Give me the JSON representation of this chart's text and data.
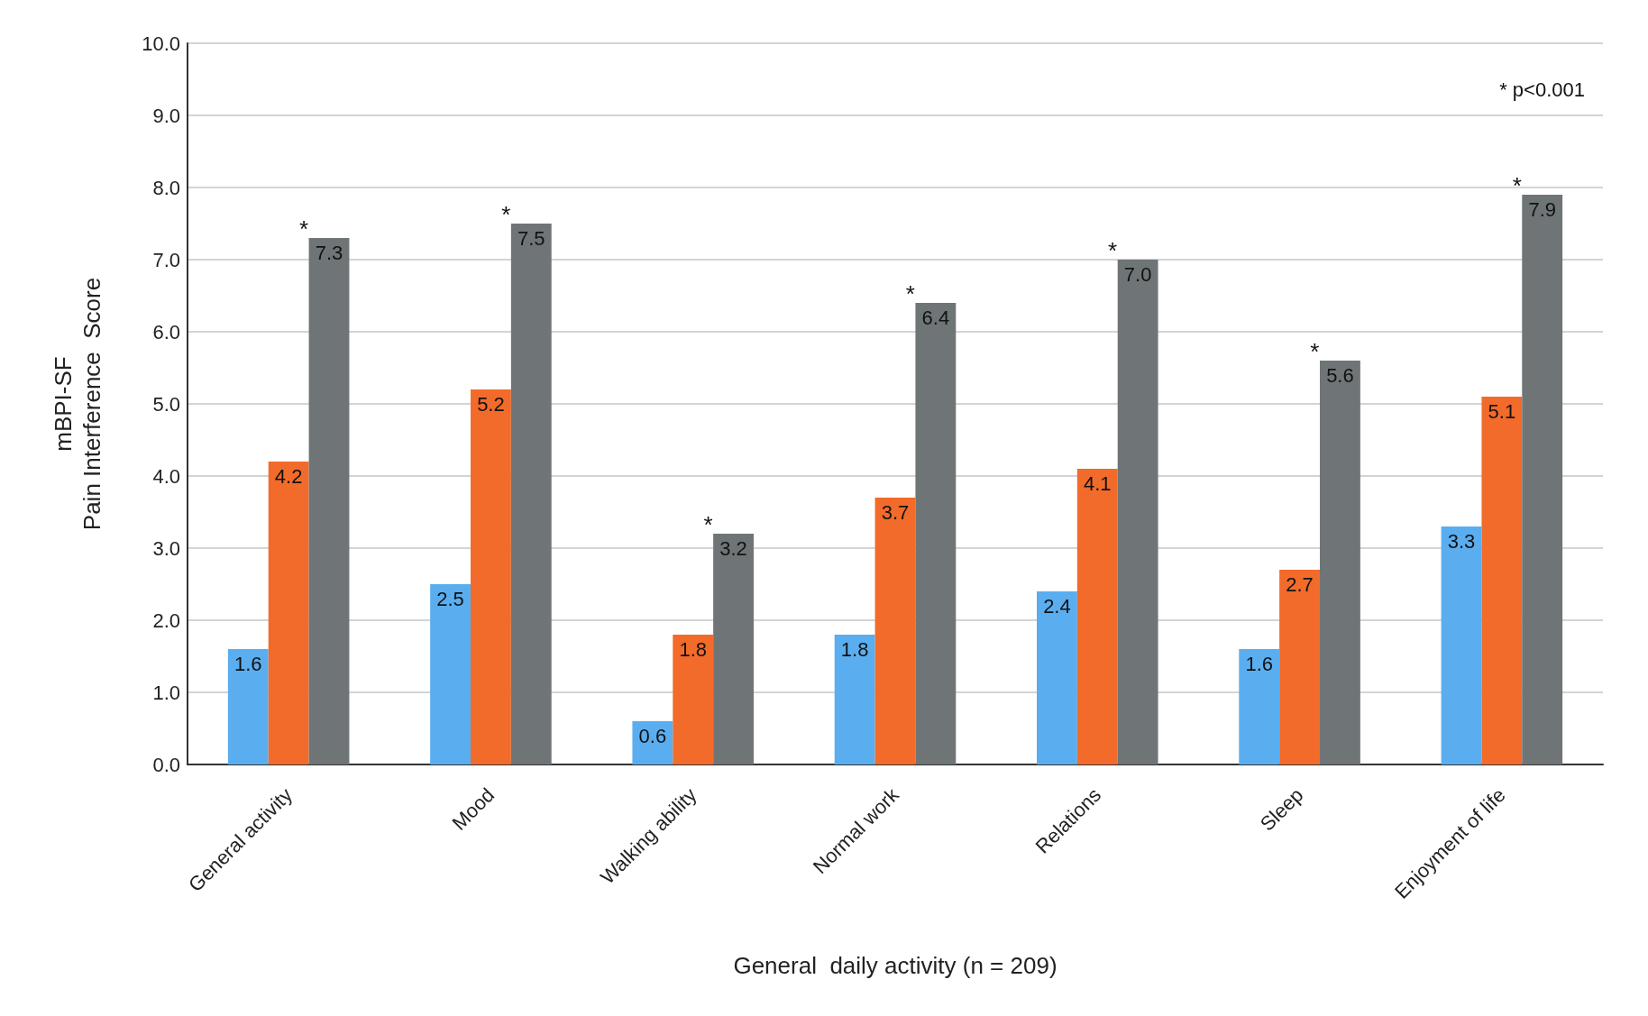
{
  "chart_data": {
    "type": "bar",
    "xlabel": "General  daily activity (n = 209)",
    "ylabel": "mBPI-SF\nPain Interference  Score",
    "categories": [
      "General activity",
      "Mood",
      "Walking ability",
      "Normal work",
      "Relations",
      "Sleep",
      "Enjoyment of life"
    ],
    "series": [
      {
        "color": "#5aaeef",
        "values": [
          1.6,
          2.5,
          0.6,
          1.8,
          2.4,
          1.6,
          3.3
        ],
        "value_labels": [
          "1.6",
          "2.5",
          "0.6",
          "1.8",
          "2.4",
          "1.6",
          "3.3"
        ]
      },
      {
        "color": "#f26b2a",
        "values": [
          4.2,
          5.2,
          1.8,
          3.7,
          4.1,
          2.7,
          5.1
        ],
        "value_labels": [
          "4.2",
          "5.2",
          "1.8",
          "3.7",
          "4.1",
          "2.7",
          "5.1"
        ]
      },
      {
        "color": "#6f7576",
        "values": [
          7.3,
          7.5,
          3.2,
          6.4,
          7.0,
          5.6,
          7.9
        ],
        "value_labels": [
          "7.3",
          "7.5",
          "3.2",
          "6.4",
          "7.0",
          "5.6",
          "7.9"
        ]
      }
    ],
    "ylim": [
      0,
      10
    ],
    "yticks": [
      {
        "value": 0,
        "label": "0.0"
      },
      {
        "value": 1,
        "label": "1.0"
      },
      {
        "value": 2,
        "label": "2.0"
      },
      {
        "value": 3,
        "label": "3.0"
      },
      {
        "value": 4,
        "label": "4.0"
      },
      {
        "value": 5,
        "label": "5.0"
      },
      {
        "value": 6,
        "label": "6.0"
      },
      {
        "value": 7,
        "label": "7.0"
      },
      {
        "value": 8,
        "label": "8.0"
      },
      {
        "value": 9,
        "label": "9.0"
      },
      {
        "value": 10,
        "label": "10.0"
      }
    ],
    "grid": "y",
    "annotations": [
      "*",
      "*",
      "*",
      "*",
      "*",
      "*",
      "*",
      "* p<0.001"
    ]
  }
}
